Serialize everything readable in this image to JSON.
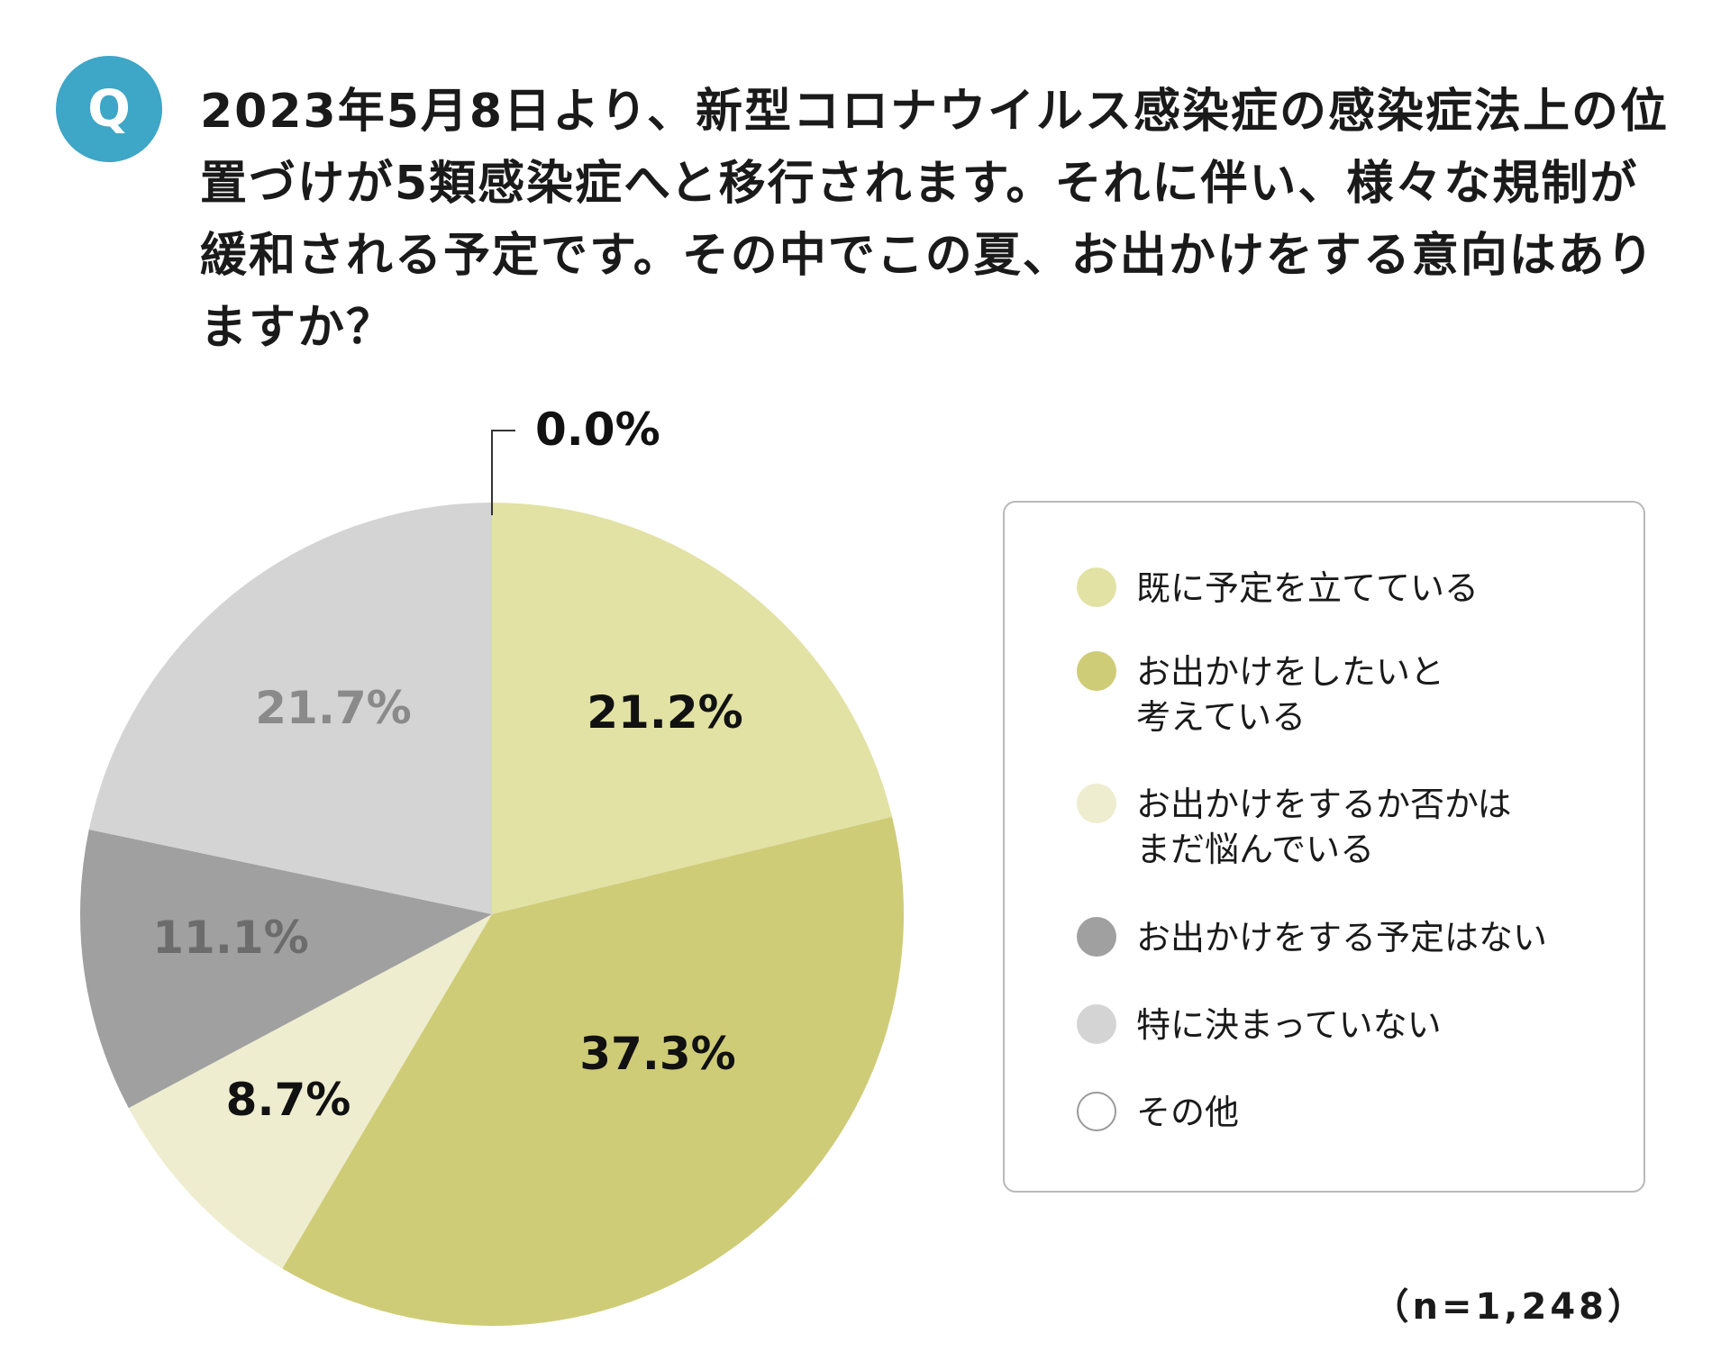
{
  "question": {
    "badge": "Q",
    "text": "2023年5月8日より、新型コロナウイルス感染症の感染症法上の位置づけが5類感染症へと移行されます。それに伴い、様々な規制が緩和される予定です。その中でこの夏、お出かけをする意向はありますか？"
  },
  "chart_data": {
    "type": "pie",
    "start_angle_deg": 0,
    "direction": "clockwise",
    "slices": [
      {
        "label": "既に予定を立てている",
        "value": 21.2,
        "value_label": "21.2%",
        "color": "#e1e2a4",
        "label_color": "#111111"
      },
      {
        "label": "お出かけをしたいと\n考えている",
        "value": 37.3,
        "value_label": "37.3%",
        "color": "#cfcc78",
        "label_color": "#111111"
      },
      {
        "label": "お出かけをするか否かは\nまだ悩んでいる",
        "value": 8.7,
        "value_label": "8.7%",
        "color": "#eeedd0",
        "label_color": "#111111"
      },
      {
        "label": "お出かけをする予定はない",
        "value": 11.1,
        "value_label": "11.1%",
        "color": "#a0a0a0",
        "label_color": "#6c6c6c"
      },
      {
        "label": "特に決まっていない",
        "value": 21.7,
        "value_label": "21.7%",
        "color": "#d4d4d4",
        "label_color": "#8a8a8a"
      },
      {
        "label": "その他",
        "value": 0.0,
        "value_label": "0.0%",
        "color": "#ffffff",
        "label_color": "#111111"
      }
    ],
    "legend_placement": "right",
    "sample_size": "（n=1,248）"
  }
}
